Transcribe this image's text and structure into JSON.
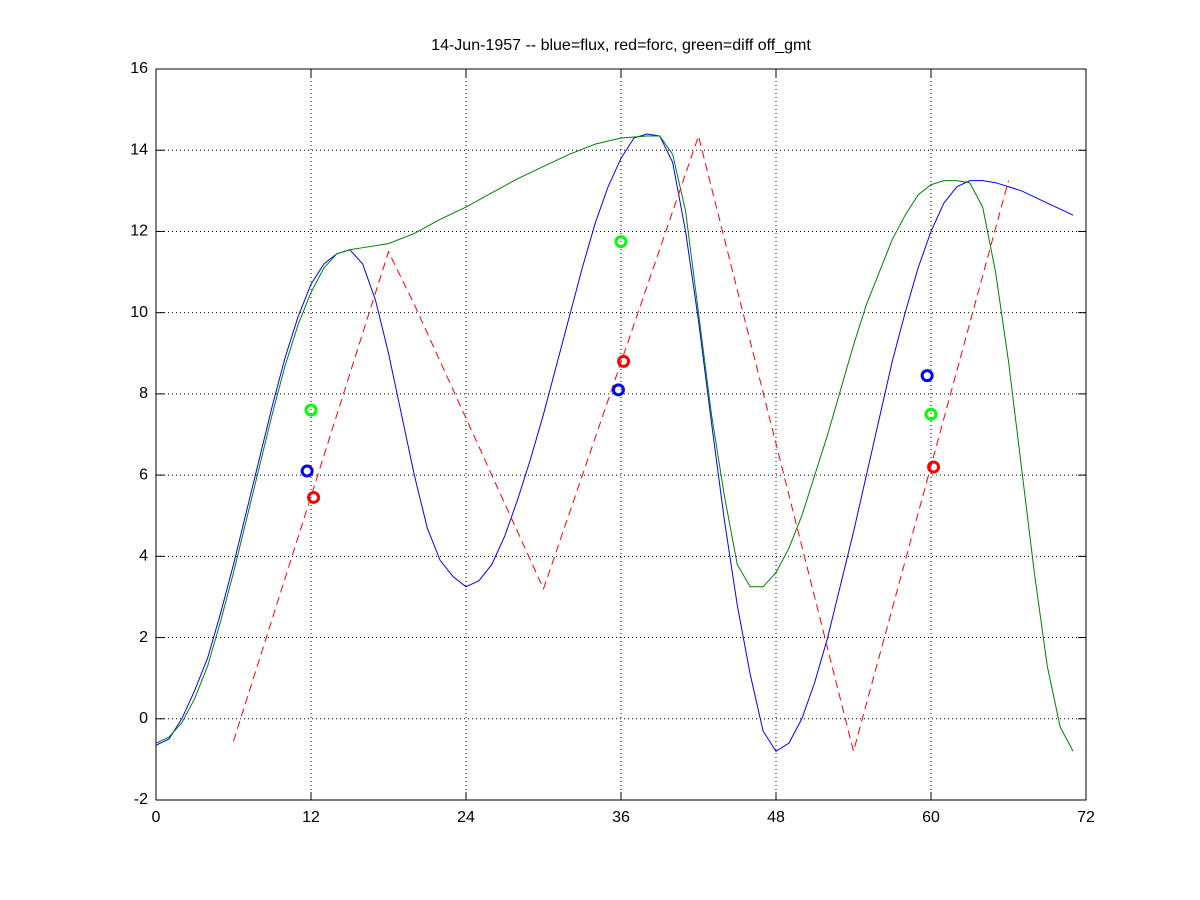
{
  "chart_data": {
    "type": "line",
    "title": "14-Jun-1957 -- blue=flux, red=forc, green=diff off_gmt",
    "xlim": [
      0,
      72
    ],
    "xticks": [
      0,
      12,
      24,
      36,
      48,
      60,
      72
    ],
    "ylim": [
      -2,
      16
    ],
    "yticks": [
      -2,
      0,
      2,
      4,
      6,
      8,
      10,
      12,
      14,
      16
    ],
    "grid": true,
    "series": [
      {
        "color": "#0000ff",
        "linestyle": "solid",
        "x": [
          0,
          1,
          2,
          3,
          4,
          5,
          6,
          7,
          8,
          9,
          10,
          11,
          12,
          13,
          14,
          15,
          16,
          17,
          18,
          19,
          20,
          21,
          22,
          23,
          24,
          25,
          26,
          27,
          28,
          29,
          30,
          31,
          32,
          33,
          34,
          35,
          36,
          37,
          38,
          39,
          40,
          41,
          42,
          43,
          44,
          45,
          46,
          47,
          48,
          49,
          50,
          51,
          52,
          53,
          54,
          55,
          56,
          57,
          58,
          59,
          60,
          61,
          62,
          63,
          64,
          65,
          66,
          67,
          68,
          69,
          70,
          71
        ],
        "values": [
          -0.65,
          -0.5,
          0,
          0.7,
          1.5,
          2.6,
          3.8,
          5.1,
          6.4,
          7.7,
          8.9,
          9.9,
          10.7,
          11.2,
          11.45,
          11.55,
          11.2,
          10.3,
          9.0,
          7.5,
          6.0,
          4.7,
          3.9,
          3.5,
          3.25,
          3.4,
          3.8,
          4.5,
          5.4,
          6.4,
          7.5,
          8.7,
          9.9,
          11.1,
          12.2,
          13.1,
          13.8,
          14.3,
          14.4,
          14.35,
          13.7,
          12.0,
          9.8,
          7.3,
          4.9,
          2.8,
          1.1,
          -0.3,
          -0.8,
          -0.6,
          0,
          0.9,
          2.0,
          3.3,
          4.6,
          6.0,
          7.4,
          8.8,
          10.0,
          11.1,
          12.0,
          12.7,
          13.1,
          13.25,
          13.25,
          13.2,
          13.1,
          13.0,
          12.85,
          12.7,
          12.55,
          12.4
        ]
      },
      {
        "color": "#008000",
        "linestyle": "solid",
        "x": [
          0,
          1,
          2,
          3,
          4,
          5,
          6,
          7,
          8,
          9,
          10,
          11,
          12,
          13,
          14,
          15,
          16,
          18,
          20,
          22,
          24,
          26,
          28,
          30,
          32,
          34,
          36,
          38,
          39,
          40,
          41,
          42,
          43,
          44,
          45,
          46,
          47,
          48,
          49,
          50,
          51,
          52,
          53,
          54,
          55,
          56,
          57,
          58,
          59,
          60,
          61,
          62,
          63,
          64,
          65,
          66,
          67,
          68,
          69,
          70,
          71
        ],
        "values": [
          -0.6,
          -0.45,
          -0.1,
          0.5,
          1.3,
          2.4,
          3.6,
          4.9,
          6.2,
          7.5,
          8.7,
          9.7,
          10.5,
          11.1,
          11.45,
          11.55,
          11.6,
          11.7,
          11.95,
          12.3,
          12.6,
          12.95,
          13.3,
          13.6,
          13.9,
          14.15,
          14.3,
          14.35,
          14.35,
          13.9,
          12.5,
          10.0,
          7.5,
          5.5,
          3.8,
          3.25,
          3.25,
          3.6,
          4.2,
          5.0,
          6.0,
          7.0,
          8.1,
          9.2,
          10.2,
          11.0,
          11.8,
          12.4,
          12.9,
          13.15,
          13.25,
          13.25,
          13.2,
          12.6,
          11.0,
          8.8,
          6.2,
          3.6,
          1.3,
          -0.2,
          -0.8
        ]
      },
      {
        "color": "#ff0000",
        "linestyle": "dashed",
        "x": [
          6,
          18,
          20,
          23,
          30,
          42,
          54,
          66
        ],
        "values": [
          -0.55,
          11.5,
          10.2,
          8.1,
          3.2,
          14.35,
          -0.8,
          13.25
        ]
      },
      {
        "color": "#0000ff",
        "marker": "circle",
        "x": [
          11.7,
          35.8,
          59.7
        ],
        "values": [
          6.1,
          8.1,
          8.45
        ]
      },
      {
        "color": "#ff0000",
        "marker": "circle",
        "x": [
          12.2,
          36.2,
          60.2
        ],
        "values": [
          5.45,
          8.8,
          6.2
        ]
      },
      {
        "color": "#00ff00",
        "marker": "circle",
        "x": [
          12.0,
          36.0,
          60.0
        ],
        "values": [
          7.6,
          11.75,
          7.5
        ]
      }
    ]
  }
}
